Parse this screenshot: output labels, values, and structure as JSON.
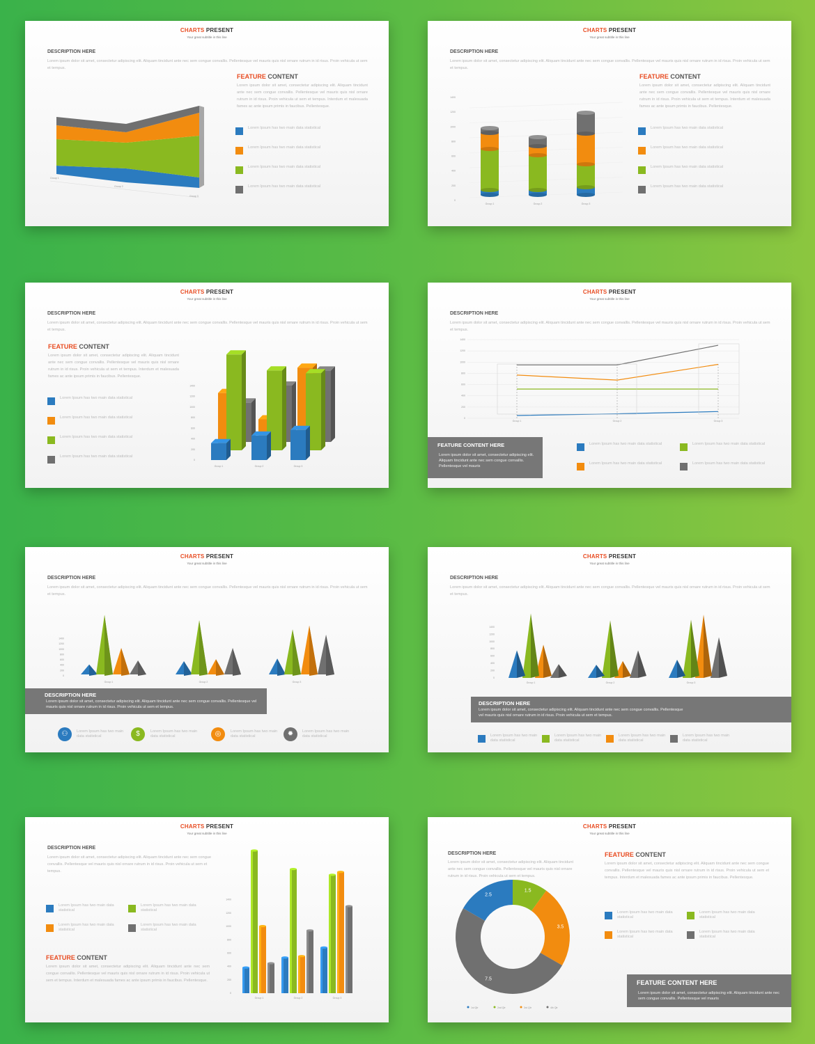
{
  "common": {
    "title_accent": "CHARTS",
    "title_rest": " PRESENT",
    "subtitle": "Your great subtitle in this line",
    "description_heading": "DESCRIPTION HERE",
    "description_text": "Lorem ipsum dolor sit amet, consectetur adipiscing elit. Aliquam tincidunt ante nec sem congue convallis. Pellentesque vel mauris quis nisl ornare rutrum in id risus. Proin vehicula ut sem et tempus.",
    "feature_accent": "FEATURE",
    "feature_rest": " CONTENT",
    "feature_text": "Lorem ipsum dolor sit amet, consectetur adipiscing elit. Aliquam tincidunt ante nec sem congue convallis. Pellentesque vel mauris quis nisl ornare rutrum in id risus. Proin vehicula ut sem et tempus. Interdum et malesuada fames ac ante ipsum primis in faucibus. Pellentesque.",
    "legend_text": "Lorem Ipsum has two main data statistical",
    "feature_here": "FEATURE CONTENT HERE",
    "feature_here_text": "Lorem ipsum dolor sit amet, consectetur adipiscing elit. Aliquam tincidunt ante nec sem congue convallis. Pellentesque vel mauris",
    "desc_box_text": "Lorem ipsum dolor sit amet, consectetur adipiscing elit. Aliquam tincidunt ante nec sem congue convallis. Pellentesque vel mauris quis nisl ornare rutrum in id risus. Proin vehicula ut sem et tempus.",
    "groups": [
      "Group 1",
      "Group 2",
      "Group 3"
    ],
    "y_ticks": [
      "0",
      "200",
      "400",
      "600",
      "800",
      "1000",
      "1200",
      "1400"
    ]
  },
  "colors": {
    "blue": "#2b7bbf",
    "orange": "#f28c0f",
    "green": "#8ab920",
    "gray": "#707070",
    "accent": "#e84c22"
  },
  "chart_data": [
    {
      "type": "area",
      "categories": [
        "Group 1",
        "Group 2",
        "Group 3"
      ],
      "series": [
        {
          "values": [
            120,
            110,
            90
          ]
        },
        {
          "values": [
            480,
            430,
            500
          ]
        },
        {
          "values": [
            250,
            200,
            320
          ]
        },
        {
          "values": [
            140,
            80,
            230
          ]
        }
      ]
    },
    {
      "type": "bar",
      "categories": [
        "Group 1",
        "Group 2",
        "Group 3"
      ],
      "series": [
        {
          "values": [
            70,
            70,
            110
          ]
        },
        {
          "values": [
            590,
            500,
            330
          ]
        },
        {
          "values": [
            230,
            130,
            440
          ]
        },
        {
          "values": [
            70,
            130,
            300
          ]
        }
      ]
    },
    {
      "type": "bar",
      "categories": [
        "Group 1",
        "Group 2",
        "Group 3"
      ],
      "series": [
        {
          "values": [
            180,
            260,
            320
          ]
        },
        {
          "values": [
            1020,
            850,
            820
          ]
        },
        {
          "values": [
            610,
            330,
            880
          ]
        },
        {
          "values": [
            420,
            600,
            760
          ]
        }
      ]
    },
    {
      "type": "line",
      "categories": [
        "Group 1",
        "Group 2",
        "Group 3"
      ],
      "series": [
        {
          "values": [
            50,
            80,
            120
          ]
        },
        {
          "values": [
            520,
            520,
            520
          ]
        },
        {
          "values": [
            770,
            680,
            960
          ]
        },
        {
          "values": [
            950,
            950,
            1300
          ]
        }
      ]
    },
    {
      "type": "bar",
      "categories": [
        "Group 1",
        "Group 2",
        "Group 3"
      ],
      "series": [
        {
          "values": [
            150,
            200,
            240
          ]
        },
        {
          "values": [
            900,
            820,
            680
          ]
        },
        {
          "values": [
            400,
            230,
            740
          ]
        },
        {
          "values": [
            210,
            400,
            600
          ]
        }
      ]
    },
    {
      "type": "bar",
      "categories": [
        "Group 1",
        "Group 2",
        "Group 3"
      ],
      "series": [
        {
          "values": [
            440,
            210,
            290
          ]
        },
        {
          "values": [
            1030,
            920,
            930
          ]
        },
        {
          "values": [
            530,
            270,
            1010
          ]
        },
        {
          "values": [
            220,
            440,
            650
          ]
        }
      ]
    },
    {
      "type": "bar",
      "categories": [
        "Group 1",
        "Group 2",
        "Group 3"
      ],
      "series": [
        {
          "values": [
            180,
            250,
            320
          ]
        },
        {
          "values": [
            1000,
            870,
            830
          ]
        },
        {
          "values": [
            470,
            260,
            850
          ]
        },
        {
          "values": [
            210,
            440,
            610
          ]
        }
      ]
    },
    {
      "type": "pie",
      "categories": [
        "1st Qtr",
        "2nd Qtr",
        "3rd Qtr",
        "4th Qtr"
      ],
      "values": [
        2.5,
        1.5,
        3.5,
        7.5
      ]
    }
  ],
  "pie_labels": [
    "2.5",
    "1.5",
    "3.5",
    "7.5"
  ],
  "pie_legend": [
    "1st Qtr",
    "2nd Qtr",
    "3rd Qtr",
    "4th Qtr"
  ]
}
